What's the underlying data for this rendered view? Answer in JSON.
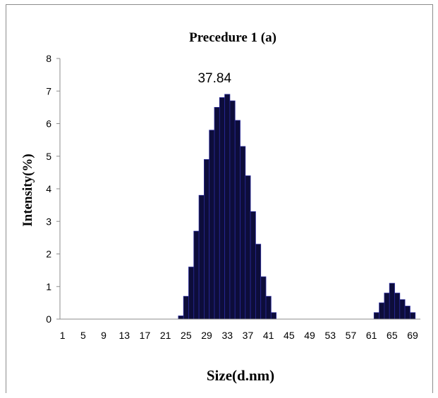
{
  "chart_data": {
    "type": "bar",
    "title": "Precedure 1 (a)",
    "xlabel": "Size(d.nm)",
    "ylabel": "Intensity(%)",
    "ylim": [
      0,
      8
    ],
    "y_ticks": [
      "0",
      "1",
      "2",
      "3",
      "4",
      "5",
      "6",
      "7",
      "8"
    ],
    "x_tick_labels": [
      "1",
      "5",
      "9",
      "13",
      "17",
      "21",
      "25",
      "29",
      "33",
      "37",
      "41",
      "45",
      "49",
      "53",
      "57",
      "61",
      "65",
      "69"
    ],
    "categories": [
      1,
      2,
      3,
      4,
      5,
      6,
      7,
      8,
      9,
      10,
      11,
      12,
      13,
      14,
      15,
      16,
      17,
      18,
      19,
      20,
      21,
      22,
      23,
      24,
      25,
      26,
      27,
      28,
      29,
      30,
      31,
      32,
      33,
      34,
      35,
      36,
      37,
      38,
      39,
      40,
      41,
      42,
      43,
      44,
      45,
      46,
      47,
      48,
      49,
      50,
      51,
      52,
      53,
      54,
      55,
      56,
      57,
      58,
      59,
      60,
      61,
      62,
      63,
      64,
      65,
      66,
      67,
      68,
      69,
      70
    ],
    "values": [
      0,
      0,
      0,
      0,
      0,
      0,
      0,
      0,
      0,
      0,
      0,
      0,
      0,
      0,
      0,
      0,
      0,
      0,
      0,
      0,
      0,
      0,
      0,
      0.1,
      0.7,
      1.6,
      2.7,
      3.8,
      4.9,
      5.8,
      6.5,
      6.8,
      6.9,
      6.7,
      6.1,
      5.3,
      4.4,
      3.3,
      2.3,
      1.3,
      0.7,
      0.2,
      0,
      0,
      0,
      0,
      0,
      0,
      0,
      0,
      0,
      0,
      0,
      0,
      0,
      0,
      0,
      0,
      0,
      0,
      0,
      0.2,
      0.5,
      0.8,
      1.1,
      0.8,
      0.6,
      0.4,
      0.2,
      0
    ],
    "annotation": "37.84",
    "grid": false,
    "legend": "none",
    "bar_color": "#0d0d3a",
    "bar_edge_color": "#2a2a9a"
  }
}
